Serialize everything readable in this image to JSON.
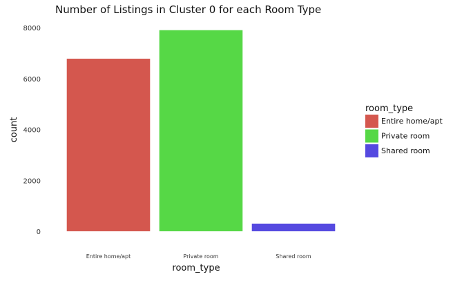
{
  "chart_data": {
    "type": "bar",
    "title": "Number of Listings in Cluster 0 for each Room Type",
    "xlabel": "room_type",
    "ylabel": "count",
    "categories": [
      "Entire home/apt",
      "Private room",
      "Shared room"
    ],
    "values": [
      6780,
      7900,
      300
    ],
    "colors": [
      "#D4574E",
      "#56D846",
      "#5549E0"
    ],
    "ylim": [
      0,
      8000
    ],
    "yticks": [
      "0",
      "2000",
      "4000",
      "6000",
      "8000"
    ],
    "grid": false,
    "legend": {
      "title": "room_type",
      "position": "right",
      "items": [
        "Entire home/apt",
        "Private room",
        "Shared room"
      ]
    }
  }
}
